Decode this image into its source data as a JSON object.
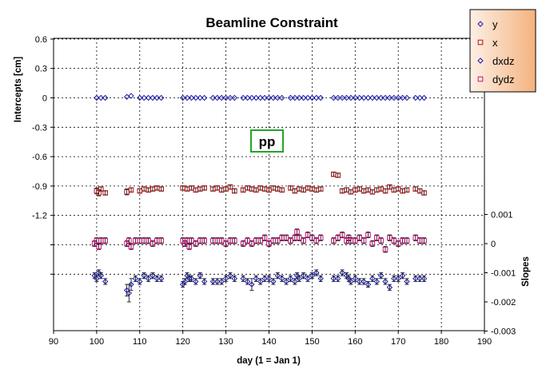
{
  "chart_data": {
    "type": "scatter",
    "title": "Beamline Constraint",
    "xlabel": "day (1 = Jan 1)",
    "ylabel": "Intercepts [cm]",
    "y2label": "Slopes",
    "xlim": [
      90,
      190
    ],
    "ylim": [
      -1.95,
      0.6
    ],
    "y2lim": [
      -0.003,
      0.0015
    ],
    "x_ticks": [
      90,
      100,
      110,
      120,
      130,
      140,
      150,
      160,
      170,
      180,
      190
    ],
    "y_ticks": [
      0.6,
      0.3,
      0,
      -0.3,
      -0.6,
      -0.9,
      -1.2
    ],
    "y2_ticks": [
      0.001,
      0,
      -0.001,
      -0.002,
      -0.003
    ],
    "grid": true,
    "legend_position": "top-right",
    "annotation": "pp",
    "series": [
      {
        "name": "y",
        "axis": "left",
        "marker": "diamond",
        "color": "#1a1aa8",
        "x": [
          100,
          101,
          102,
          107,
          108,
          110,
          111,
          112,
          113,
          114,
          115,
          120,
          121,
          122,
          123,
          124,
          125,
          127,
          128,
          129,
          130,
          131,
          132,
          134,
          135,
          136,
          137,
          138,
          139,
          140,
          141,
          142,
          143,
          145,
          146,
          147,
          148,
          149,
          150,
          151,
          152,
          155,
          156,
          157,
          158,
          159,
          160,
          161,
          162,
          163,
          164,
          165,
          166,
          167,
          168,
          169,
          170,
          171,
          172,
          174,
          175,
          176
        ],
        "y": [
          0,
          0,
          0,
          0.01,
          0.02,
          0,
          0,
          0,
          0,
          0,
          0,
          0,
          0,
          0,
          0,
          0,
          0,
          0,
          0,
          0,
          0,
          0,
          0,
          0,
          0,
          0,
          0,
          0,
          0,
          0,
          0,
          0,
          0,
          0,
          0,
          0,
          0,
          0,
          0,
          0,
          0,
          0,
          0,
          0,
          0,
          0,
          0,
          0,
          0,
          0,
          0,
          0,
          0,
          0,
          0,
          0,
          0,
          0,
          0,
          0,
          0,
          0
        ],
        "err": []
      },
      {
        "name": "x",
        "axis": "left",
        "marker": "square",
        "color": "#aa1a1a",
        "x": [
          100,
          100.5,
          101,
          102,
          107,
          108,
          110,
          111,
          112,
          113,
          114,
          115,
          120,
          121,
          122,
          123,
          124,
          125,
          127,
          128,
          129,
          130,
          131,
          132,
          134,
          135,
          136,
          137,
          138,
          139,
          140,
          141,
          142,
          143,
          145,
          146,
          147,
          148,
          149,
          150,
          151,
          152,
          155,
          156,
          157,
          158,
          159,
          160,
          161,
          162,
          163,
          164,
          165,
          166,
          167,
          168,
          169,
          170,
          171,
          172,
          174,
          175,
          176
        ],
        "y": [
          -0.95,
          -0.97,
          -0.93,
          -0.97,
          -0.96,
          -0.94,
          -0.95,
          -0.93,
          -0.94,
          -0.93,
          -0.92,
          -0.93,
          -0.92,
          -0.93,
          -0.92,
          -0.94,
          -0.93,
          -0.92,
          -0.93,
          -0.92,
          -0.94,
          -0.93,
          -0.91,
          -0.95,
          -0.94,
          -0.92,
          -0.93,
          -0.94,
          -0.92,
          -0.93,
          -0.94,
          -0.92,
          -0.93,
          -0.94,
          -0.92,
          -0.95,
          -0.93,
          -0.94,
          -0.92,
          -0.93,
          -0.94,
          -0.93,
          -0.78,
          -0.79,
          -0.95,
          -0.94,
          -0.96,
          -0.94,
          -0.93,
          -0.95,
          -0.94,
          -0.96,
          -0.94,
          -0.93,
          -0.95,
          -0.91,
          -0.94,
          -0.93,
          -0.95,
          -0.94,
          -0.93,
          -0.95,
          -0.97
        ],
        "err": [
          0.03,
          0.03,
          0.02,
          0.02,
          0.03,
          0.02,
          0.02,
          0.02,
          0.02,
          0.02,
          0.02,
          0.02,
          0.02,
          0.02,
          0.02,
          0.02,
          0.02,
          0.02,
          0.02,
          0.02,
          0.02,
          0.02,
          0.02,
          0.02,
          0.02,
          0.02,
          0.02,
          0.02,
          0.02,
          0.02,
          0.02,
          0.02,
          0.02,
          0.02,
          0.02,
          0.02,
          0.02,
          0.02,
          0.02,
          0.02,
          0.02,
          0.02,
          0.02,
          0.02,
          0.02,
          0.02,
          0.02,
          0.02,
          0.02,
          0.02,
          0.02,
          0.02,
          0.02,
          0.02,
          0.02,
          0.02,
          0.02,
          0.02,
          0.02,
          0.02,
          0.02,
          0.02,
          0.02
        ]
      },
      {
        "name": "dxdz",
        "axis": "right",
        "marker": "diamond",
        "color": "#1a1aa8",
        "x": [
          99.5,
          100,
          100.5,
          101,
          102,
          107,
          107.5,
          108,
          109,
          110,
          111,
          112,
          113,
          114,
          115,
          120,
          120.5,
          121,
          121.5,
          122,
          123,
          124,
          125,
          127,
          128,
          129,
          130,
          131,
          132,
          134,
          135,
          136,
          137,
          138,
          139,
          140,
          141,
          142,
          143,
          144,
          145,
          146,
          146.5,
          147,
          148,
          149,
          150,
          151,
          152,
          155,
          156,
          157,
          158,
          158.5,
          159,
          160,
          161,
          162,
          163,
          164,
          165,
          166,
          167,
          168,
          169,
          170,
          171,
          172,
          174,
          175,
          176
        ],
        "y": [
          -0.0011,
          -0.0012,
          -0.001,
          -0.0011,
          -0.0013,
          -0.0016,
          -0.0017,
          -0.0014,
          -0.0012,
          -0.0013,
          -0.0011,
          -0.0012,
          -0.0011,
          -0.0012,
          -0.0012,
          -0.0014,
          -0.0013,
          -0.0011,
          -0.0012,
          -0.0012,
          -0.0013,
          -0.0011,
          -0.0013,
          -0.0013,
          -0.0013,
          -0.0013,
          -0.0012,
          -0.0011,
          -0.0012,
          -0.0012,
          -0.0013,
          -0.0014,
          -0.0012,
          -0.0013,
          -0.0012,
          -0.0012,
          -0.0013,
          -0.0011,
          -0.0012,
          -0.0013,
          -0.0012,
          -0.0013,
          -0.0011,
          -0.0012,
          -0.0011,
          -0.0012,
          -0.0011,
          -0.001,
          -0.0012,
          -0.0012,
          -0.0012,
          -0.001,
          -0.0011,
          -0.0012,
          -0.0013,
          -0.0012,
          -0.0013,
          -0.0013,
          -0.0014,
          -0.0012,
          -0.0013,
          -0.0011,
          -0.0013,
          -0.0015,
          -0.0012,
          -0.0012,
          -0.0011,
          -0.0013,
          -0.0012,
          -0.0012,
          -0.0012
        ],
        "err": [
          0.0001,
          0.0001,
          0.0001,
          0.0001,
          0.0001,
          0.0002,
          0.0003,
          0.0002,
          0.0001,
          0.0001,
          0.0001,
          0.0001,
          0.0001,
          0.0001,
          0.0001,
          0.0001,
          0.0001,
          0.0001,
          0.0001,
          0.0001,
          0.0001,
          0.0001,
          0.0001,
          0.0001,
          0.0001,
          0.0001,
          0.0001,
          0.0001,
          0.0001,
          0.0001,
          0.0001,
          0.0002,
          0.0001,
          0.0001,
          0.0001,
          0.0001,
          0.0001,
          0.0001,
          0.0001,
          0.0001,
          0.0001,
          0.0001,
          0.0001,
          0.0001,
          0.0001,
          0.0001,
          0.0001,
          0.0001,
          0.0001,
          0.0001,
          0.0001,
          0.0001,
          0.0001,
          0.0001,
          0.0001,
          0.0001,
          0.0001,
          0.0001,
          0.0001,
          0.0001,
          0.0001,
          0.0001,
          0.0001,
          0.0001,
          0.0001,
          0.0001,
          0.0001,
          0.0001,
          0.0001,
          0.0001,
          0.0001
        ]
      },
      {
        "name": "dydz",
        "axis": "right",
        "marker": "square",
        "color": "#c8147a",
        "x": [
          99.5,
          100,
          100.5,
          101,
          102,
          107,
          107.5,
          108,
          109,
          110,
          111,
          112,
          113,
          114,
          115,
          120,
          120.5,
          121,
          121.5,
          122,
          123,
          124,
          125,
          127,
          128,
          129,
          130,
          131,
          132,
          134,
          135,
          136,
          137,
          138,
          139,
          140,
          141,
          142,
          143,
          144,
          145,
          146,
          146.5,
          147,
          148,
          149,
          150,
          151,
          152,
          155,
          156,
          157,
          158,
          158.5,
          159,
          160,
          161,
          162,
          163,
          164,
          165,
          166,
          167,
          168,
          169,
          170,
          171,
          172,
          174,
          175,
          176
        ],
        "y": [
          0,
          0.0001,
          -0.0001,
          0.0001,
          0.0001,
          0,
          0.0001,
          -0.0001,
          0.0001,
          0.0001,
          0.0001,
          0.0001,
          0,
          0.0001,
          0.0001,
          0.0001,
          0,
          0.0001,
          -0.0001,
          0.0001,
          0,
          0.0001,
          0.0001,
          0.0001,
          0.0001,
          0.0001,
          0,
          0.0001,
          0.0001,
          0,
          0.0001,
          0,
          0.0001,
          0.0001,
          0.0002,
          0,
          0.0001,
          0.0001,
          0.0002,
          0.0002,
          0.0001,
          0.0002,
          0.0004,
          0.0002,
          0.0001,
          0.0003,
          0.0002,
          0.0001,
          0.0002,
          0.0001,
          0.0002,
          0.0003,
          0.0001,
          0.0002,
          0.0001,
          0.0001,
          0.0002,
          0.0001,
          0.0003,
          0,
          0.0002,
          0.0001,
          -0.0002,
          0.0002,
          0.0001,
          0,
          0.0001,
          0.0001,
          0.0002,
          0.0001,
          0.0001
        ],
        "err": [
          0.0001,
          0.0001,
          0.0001,
          0.0001,
          0.0001,
          0.0001,
          0.0001,
          0.0001,
          0.0001,
          0.0001,
          0.0001,
          0.0001,
          0.0001,
          0.0001,
          0.0001,
          0.0001,
          0.0001,
          0.0001,
          0.0001,
          0.0001,
          0.0001,
          0.0001,
          0.0001,
          0.0001,
          0.0001,
          0.0001,
          0.0001,
          0.0001,
          0.0001,
          0.0001,
          0.0001,
          0.0001,
          0.0001,
          0.0001,
          0.0001,
          0.0001,
          0.0001,
          0.0001,
          0.0001,
          0.0001,
          0.0001,
          0.0001,
          0.0001,
          0.0001,
          0.0001,
          0.0001,
          0.0001,
          0.0001,
          0.0001,
          0.0001,
          0.0001,
          0.0001,
          0.0001,
          0.0001,
          0.0001,
          0.0001,
          0.0001,
          0.0001,
          0.0001,
          0.0001,
          0.0001,
          0.0001,
          0.0001,
          0.0001,
          0.0001,
          0.0001,
          0.0001,
          0.0001,
          0.0001,
          0.0001,
          0.0001
        ]
      }
    ]
  }
}
